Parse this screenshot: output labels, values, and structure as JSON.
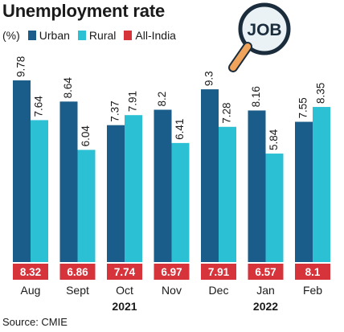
{
  "title": "Unemployment rate",
  "legend": {
    "unit": "(%)",
    "items": [
      {
        "label": "Urban",
        "color": "#1a5d8a"
      },
      {
        "label": "Rural",
        "color": "#2cc0d4"
      },
      {
        "label": "All-India",
        "color": "#d7333b"
      }
    ]
  },
  "icon": {
    "name": "magnifier-job-icon",
    "text": "JOB"
  },
  "source": "Source: CMIE",
  "chart_data": {
    "type": "bar",
    "categories": [
      "Aug",
      "Sept",
      "Oct",
      "Nov",
      "Dec",
      "Jan",
      "Feb"
    ],
    "year_labels": [
      {
        "after_category": "Oct",
        "label": "2021"
      },
      {
        "after_category": "Jan",
        "label": "2022"
      }
    ],
    "series": [
      {
        "name": "Urban",
        "color": "#1a5d8a",
        "values": [
          9.78,
          8.64,
          7.37,
          8.2,
          9.3,
          8.16,
          7.55
        ]
      },
      {
        "name": "Rural",
        "color": "#2cc0d4",
        "values": [
          7.64,
          6.04,
          7.91,
          6.41,
          7.28,
          5.84,
          8.35
        ]
      },
      {
        "name": "All-India",
        "color": "#d7333b",
        "values": [
          8.32,
          6.86,
          7.74,
          6.97,
          7.91,
          6.57,
          8.1
        ]
      }
    ],
    "value_labels": {
      "Urban": [
        "9.78",
        "8.64",
        "7.37",
        "8.2",
        "9.3",
        "8.16",
        "7.55"
      ],
      "Rural": [
        "7.64",
        "6.04",
        "7.91",
        "6.41",
        "7.28",
        "5.84",
        "8.35"
      ],
      "All-India": [
        "8.32",
        "6.86",
        "7.74",
        "6.97",
        "7.91",
        "6.57",
        "8.1"
      ]
    },
    "ylim": [
      0,
      9.78
    ],
    "grid": false
  }
}
